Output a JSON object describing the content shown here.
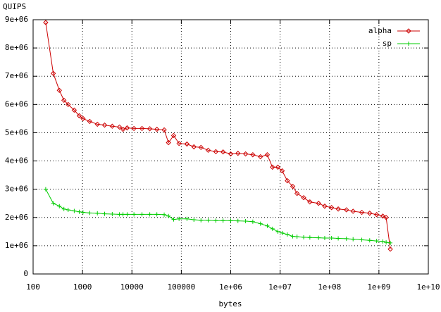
{
  "chart_data": {
    "type": "line",
    "y_label": "QUIPS",
    "x_label": "bytes",
    "x": [
      180,
      256,
      340,
      420,
      512,
      680,
      860,
      1024,
      1400,
      2000,
      2800,
      4000,
      5600,
      6600,
      8000,
      11000,
      16000,
      23000,
      32000,
      45000,
      55000,
      70000,
      90000,
      130000,
      180000,
      250000,
      350000,
      500000,
      700000,
      1000000,
      1400000,
      2000000,
      2800000,
      4000000,
      5500000,
      7000000,
      9000000,
      11000000,
      14000000,
      18000000,
      22000000,
      30000000,
      40000000,
      60000000,
      80000000,
      110000000,
      150000000,
      220000000,
      300000000,
      450000000,
      650000000,
      900000000,
      1200000000,
      1400000000,
      1700000000
    ],
    "series": [
      {
        "name": "alpha",
        "color": "#cc0000",
        "values": [
          8900000,
          7100000,
          6500000,
          6150000,
          6000000,
          5800000,
          5600000,
          5500000,
          5400000,
          5300000,
          5270000,
          5230000,
          5200000,
          5120000,
          5170000,
          5150000,
          5150000,
          5140000,
          5120000,
          5100000,
          4650000,
          4900000,
          4620000,
          4600000,
          4500000,
          4480000,
          4380000,
          4330000,
          4320000,
          4250000,
          4270000,
          4250000,
          4220000,
          4150000,
          4220000,
          3780000,
          3780000,
          3650000,
          3300000,
          3100000,
          2850000,
          2700000,
          2550000,
          2500000,
          2400000,
          2350000,
          2300000,
          2270000,
          2220000,
          2180000,
          2150000,
          2100000,
          2050000,
          2000000,
          880000
        ]
      },
      {
        "name": "sp",
        "color": "#00cc00",
        "values": [
          3000000,
          2500000,
          2400000,
          2300000,
          2270000,
          2230000,
          2200000,
          2180000,
          2160000,
          2150000,
          2130000,
          2120000,
          2110000,
          2110000,
          2110000,
          2110000,
          2110000,
          2110000,
          2110000,
          2100000,
          2050000,
          1930000,
          1950000,
          1950000,
          1920000,
          1900000,
          1900000,
          1890000,
          1890000,
          1890000,
          1880000,
          1870000,
          1850000,
          1780000,
          1700000,
          1600000,
          1500000,
          1450000,
          1400000,
          1330000,
          1320000,
          1300000,
          1290000,
          1280000,
          1270000,
          1270000,
          1260000,
          1250000,
          1230000,
          1210000,
          1190000,
          1170000,
          1150000,
          1120000,
          1100000
        ]
      }
    ],
    "xlim": [
      100,
      10000000000
    ],
    "log_x": true,
    "xticks": [
      100,
      1000,
      10000,
      100000,
      {
        "value": 1000000,
        "label": "1e+06"
      },
      {
        "value": 10000000,
        "label": "1e+07"
      },
      {
        "value": 100000000,
        "label": "1e+08"
      },
      {
        "value": 1000000000,
        "label": "1e+09"
      },
      {
        "value": 10000000000,
        "label": "1e+10"
      }
    ],
    "ylim": [
      0,
      9000000
    ],
    "yticks": [
      0,
      {
        "value": 1000000,
        "label": "1e+06"
      },
      {
        "value": 2000000,
        "label": "2e+06"
      },
      {
        "value": 3000000,
        "label": "3e+06"
      },
      {
        "value": 4000000,
        "label": "4e+06"
      },
      {
        "value": 5000000,
        "label": "5e+06"
      },
      {
        "value": 6000000,
        "label": "6e+06"
      },
      {
        "value": 7000000,
        "label": "7e+06"
      },
      {
        "value": 8000000,
        "label": "8e+06"
      },
      {
        "value": 9000000,
        "label": "9e+06"
      }
    ],
    "grid": true,
    "legend": "top right"
  }
}
